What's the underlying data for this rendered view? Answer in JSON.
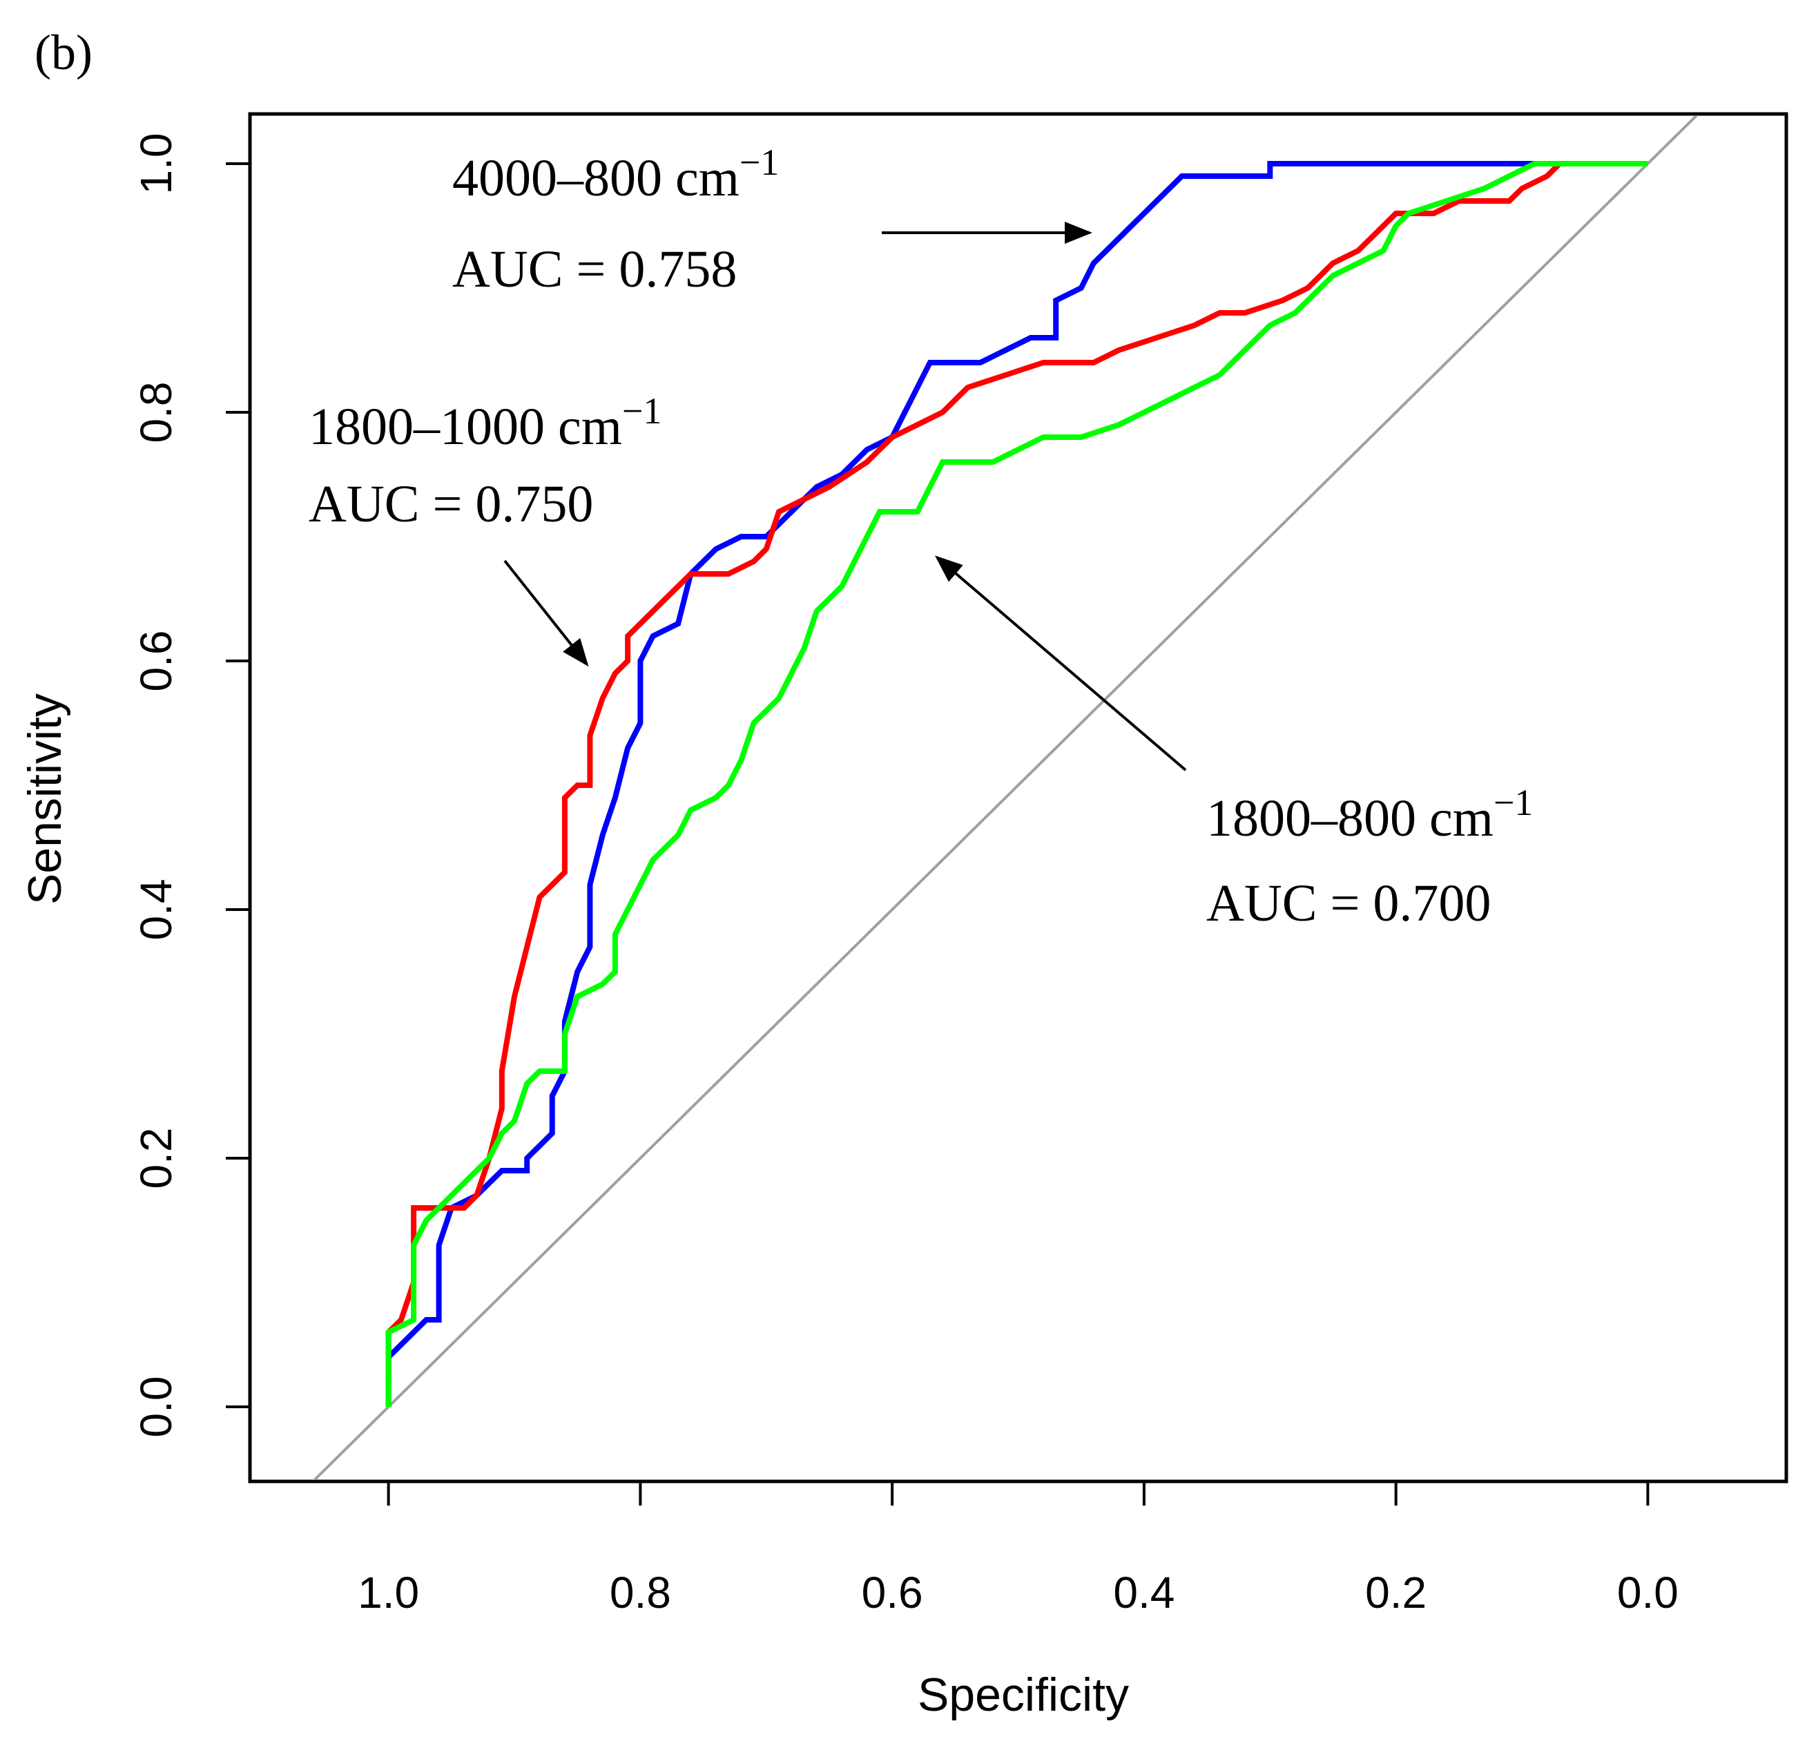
{
  "panel_label": "(b)",
  "chart_data": {
    "type": "line",
    "title": "",
    "xlabel": "Specificity",
    "ylabel": "Sensitivity",
    "xlim": [
      1.11,
      -0.11
    ],
    "ylim": [
      -0.06,
      1.04
    ],
    "x_ticks": [
      1.0,
      0.8,
      0.6,
      0.4,
      0.2,
      0.0
    ],
    "x_tick_labels": [
      "1.0",
      "0.8",
      "0.6",
      "0.4",
      "0.2",
      "0.0"
    ],
    "y_ticks": [
      0.0,
      0.2,
      0.4,
      0.6,
      0.8,
      1.0
    ],
    "y_tick_labels": [
      "0.0",
      "0.2",
      "0.4",
      "0.6",
      "0.8",
      "1.0"
    ],
    "grid": false,
    "reference_line": {
      "color": "#a0a0a0",
      "points": [
        [
          1.0,
          0.0
        ],
        [
          0.0,
          1.0
        ]
      ]
    },
    "series": [
      {
        "name": "4000–800 cm⁻¹",
        "color": "#0000ff",
        "auc": "AUC = 0.758",
        "points": [
          [
            1.0,
            0.0
          ],
          [
            1.0,
            0.04
          ],
          [
            0.99,
            0.05
          ],
          [
            0.98,
            0.06
          ],
          [
            0.97,
            0.07
          ],
          [
            0.96,
            0.07
          ],
          [
            0.96,
            0.13
          ],
          [
            0.95,
            0.16
          ],
          [
            0.93,
            0.17
          ],
          [
            0.92,
            0.18
          ],
          [
            0.91,
            0.19
          ],
          [
            0.89,
            0.19
          ],
          [
            0.89,
            0.2
          ],
          [
            0.88,
            0.21
          ],
          [
            0.87,
            0.22
          ],
          [
            0.87,
            0.25
          ],
          [
            0.86,
            0.27
          ],
          [
            0.86,
            0.31
          ],
          [
            0.85,
            0.35
          ],
          [
            0.84,
            0.37
          ],
          [
            0.84,
            0.42
          ],
          [
            0.83,
            0.46
          ],
          [
            0.82,
            0.49
          ],
          [
            0.81,
            0.53
          ],
          [
            0.8,
            0.55
          ],
          [
            0.8,
            0.6
          ],
          [
            0.79,
            0.62
          ],
          [
            0.77,
            0.63
          ],
          [
            0.76,
            0.67
          ],
          [
            0.74,
            0.69
          ],
          [
            0.72,
            0.7
          ],
          [
            0.7,
            0.7
          ],
          [
            0.68,
            0.72
          ],
          [
            0.66,
            0.74
          ],
          [
            0.64,
            0.75
          ],
          [
            0.62,
            0.77
          ],
          [
            0.6,
            0.78
          ],
          [
            0.59,
            0.8
          ],
          [
            0.58,
            0.82
          ],
          [
            0.57,
            0.84
          ],
          [
            0.53,
            0.84
          ],
          [
            0.51,
            0.85
          ],
          [
            0.49,
            0.86
          ],
          [
            0.47,
            0.86
          ],
          [
            0.47,
            0.89
          ],
          [
            0.45,
            0.9
          ],
          [
            0.44,
            0.92
          ],
          [
            0.43,
            0.93
          ],
          [
            0.41,
            0.95
          ],
          [
            0.39,
            0.97
          ],
          [
            0.37,
            0.99
          ],
          [
            0.34,
            0.99
          ],
          [
            0.3,
            0.99
          ],
          [
            0.3,
            1.0
          ],
          [
            0.04,
            1.0
          ]
        ]
      },
      {
        "name": "1800–1000 cm⁻¹",
        "color": "#ff0000",
        "auc": "AUC = 0.750",
        "points": [
          [
            1.0,
            0.02
          ],
          [
            1.0,
            0.06
          ],
          [
            0.99,
            0.07
          ],
          [
            0.98,
            0.1
          ],
          [
            0.98,
            0.16
          ],
          [
            0.96,
            0.16
          ],
          [
            0.94,
            0.16
          ],
          [
            0.93,
            0.17
          ],
          [
            0.92,
            0.2
          ],
          [
            0.91,
            0.24
          ],
          [
            0.91,
            0.27
          ],
          [
            0.9,
            0.33
          ],
          [
            0.89,
            0.37
          ],
          [
            0.88,
            0.41
          ],
          [
            0.87,
            0.42
          ],
          [
            0.86,
            0.43
          ],
          [
            0.86,
            0.49
          ],
          [
            0.85,
            0.5
          ],
          [
            0.84,
            0.5
          ],
          [
            0.84,
            0.54
          ],
          [
            0.83,
            0.57
          ],
          [
            0.82,
            0.59
          ],
          [
            0.81,
            0.6
          ],
          [
            0.81,
            0.62
          ],
          [
            0.8,
            0.63
          ],
          [
            0.79,
            0.64
          ],
          [
            0.78,
            0.65
          ],
          [
            0.77,
            0.66
          ],
          [
            0.76,
            0.67
          ],
          [
            0.73,
            0.67
          ],
          [
            0.71,
            0.68
          ],
          [
            0.7,
            0.69
          ],
          [
            0.69,
            0.72
          ],
          [
            0.67,
            0.73
          ],
          [
            0.65,
            0.74
          ],
          [
            0.62,
            0.76
          ],
          [
            0.6,
            0.78
          ],
          [
            0.58,
            0.79
          ],
          [
            0.56,
            0.8
          ],
          [
            0.54,
            0.82
          ],
          [
            0.51,
            0.83
          ],
          [
            0.48,
            0.84
          ],
          [
            0.44,
            0.84
          ],
          [
            0.42,
            0.85
          ],
          [
            0.39,
            0.86
          ],
          [
            0.36,
            0.87
          ],
          [
            0.34,
            0.88
          ],
          [
            0.32,
            0.88
          ],
          [
            0.29,
            0.89
          ],
          [
            0.27,
            0.9
          ],
          [
            0.26,
            0.91
          ],
          [
            0.25,
            0.92
          ],
          [
            0.23,
            0.93
          ],
          [
            0.22,
            0.94
          ],
          [
            0.21,
            0.95
          ],
          [
            0.2,
            0.96
          ],
          [
            0.17,
            0.96
          ],
          [
            0.15,
            0.97
          ],
          [
            0.11,
            0.97
          ],
          [
            0.1,
            0.98
          ],
          [
            0.08,
            0.99
          ],
          [
            0.07,
            1.0
          ],
          [
            0.05,
            1.0
          ]
        ]
      },
      {
        "name": "1800–800 cm⁻¹",
        "color": "#00ff00",
        "auc": "AUC = 0.700",
        "points": [
          [
            1.0,
            0.0
          ],
          [
            1.0,
            0.06
          ],
          [
            0.98,
            0.07
          ],
          [
            0.98,
            0.13
          ],
          [
            0.97,
            0.15
          ],
          [
            0.96,
            0.16
          ],
          [
            0.95,
            0.17
          ],
          [
            0.94,
            0.18
          ],
          [
            0.92,
            0.2
          ],
          [
            0.91,
            0.22
          ],
          [
            0.9,
            0.23
          ],
          [
            0.89,
            0.26
          ],
          [
            0.88,
            0.27
          ],
          [
            0.86,
            0.27
          ],
          [
            0.86,
            0.3
          ],
          [
            0.85,
            0.33
          ],
          [
            0.83,
            0.34
          ],
          [
            0.82,
            0.35
          ],
          [
            0.82,
            0.38
          ],
          [
            0.81,
            0.4
          ],
          [
            0.8,
            0.42
          ],
          [
            0.79,
            0.44
          ],
          [
            0.77,
            0.46
          ],
          [
            0.76,
            0.48
          ],
          [
            0.74,
            0.49
          ],
          [
            0.73,
            0.5
          ],
          [
            0.72,
            0.52
          ],
          [
            0.71,
            0.55
          ],
          [
            0.7,
            0.56
          ],
          [
            0.69,
            0.57
          ],
          [
            0.68,
            0.59
          ],
          [
            0.67,
            0.61
          ],
          [
            0.66,
            0.64
          ],
          [
            0.64,
            0.66
          ],
          [
            0.63,
            0.68
          ],
          [
            0.62,
            0.7
          ],
          [
            0.61,
            0.72
          ],
          [
            0.58,
            0.72
          ],
          [
            0.57,
            0.74
          ],
          [
            0.56,
            0.76
          ],
          [
            0.52,
            0.76
          ],
          [
            0.5,
            0.77
          ],
          [
            0.48,
            0.78
          ],
          [
            0.45,
            0.78
          ],
          [
            0.42,
            0.79
          ],
          [
            0.4,
            0.8
          ],
          [
            0.38,
            0.81
          ],
          [
            0.36,
            0.82
          ],
          [
            0.34,
            0.83
          ],
          [
            0.33,
            0.84
          ],
          [
            0.31,
            0.86
          ],
          [
            0.3,
            0.87
          ],
          [
            0.28,
            0.88
          ],
          [
            0.27,
            0.89
          ],
          [
            0.25,
            0.91
          ],
          [
            0.23,
            0.92
          ],
          [
            0.21,
            0.93
          ],
          [
            0.2,
            0.95
          ],
          [
            0.19,
            0.96
          ],
          [
            0.16,
            0.97
          ],
          [
            0.13,
            0.98
          ],
          [
            0.11,
            0.99
          ],
          [
            0.09,
            1.0
          ],
          [
            0.0,
            1.0
          ]
        ]
      }
    ],
    "annotations": [
      {
        "series": 0,
        "range": "4000–800 cm",
        "exponent": "−1",
        "auc": "AUC = 0.758"
      },
      {
        "series": 1,
        "range": "1800–1000 cm",
        "exponent": "−1",
        "auc": "AUC = 0.750"
      },
      {
        "series": 2,
        "range": "1800–800 cm",
        "exponent": "−1",
        "auc": "AUC = 0.700"
      }
    ]
  }
}
